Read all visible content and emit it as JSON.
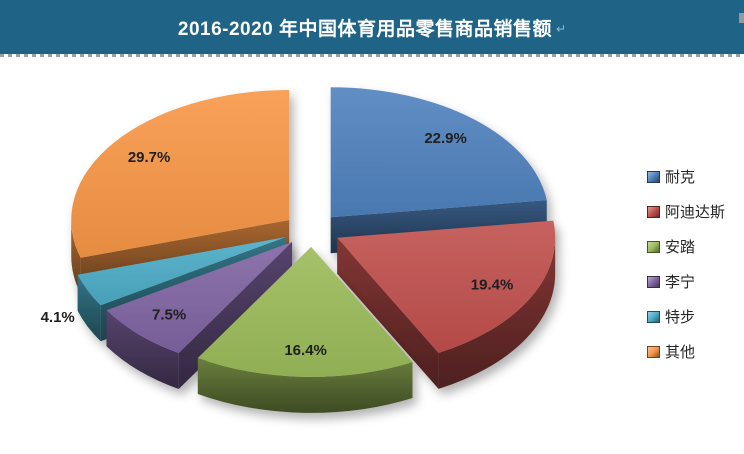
{
  "banner": {
    "title": "2016-2020 年中国体育用品零售商品销售额",
    "paragraph_mark": "↵",
    "background_color": "#1F6386",
    "text_color": "#FFFFFF"
  },
  "chart_data": {
    "type": "pie",
    "title": "2016-2020 年中国体育用品零售商品销售额",
    "style": "3d-exploded",
    "start_angle_deg": 0,
    "direction": "clockwise",
    "legend_position": "right",
    "unit": "%",
    "slices": [
      {
        "label": "耐克",
        "value": 22.9,
        "display": "22.9%",
        "color": "#4F81BD"
      },
      {
        "label": "阿迪达斯",
        "value": 19.4,
        "display": "19.4%",
        "color": "#C0504D"
      },
      {
        "label": "安踏",
        "value": 16.4,
        "display": "16.4%",
        "color": "#9BBB59"
      },
      {
        "label": "李宁",
        "value": 7.5,
        "display": "7.5%",
        "color": "#8064A2"
      },
      {
        "label": "特步",
        "value": 4.1,
        "display": "4.1%",
        "color": "#4BACC6"
      },
      {
        "label": "其他",
        "value": 29.7,
        "display": "29.7%",
        "color": "#F79646"
      }
    ]
  }
}
